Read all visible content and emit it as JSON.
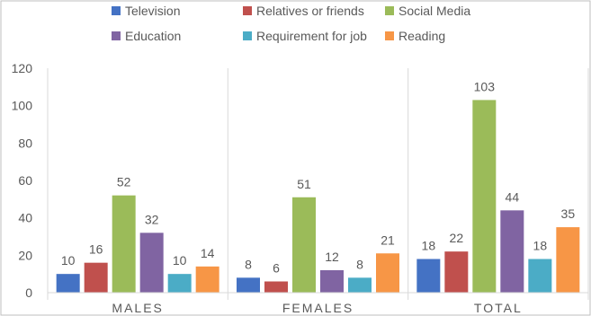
{
  "chart_data": {
    "type": "bar",
    "categories": [
      "MALES",
      "FEMALES",
      "TOTAL"
    ],
    "series": [
      {
        "name": "Television",
        "values": [
          10,
          8,
          18
        ],
        "color": "#4472C4"
      },
      {
        "name": "Relatives or friends",
        "values": [
          16,
          6,
          22
        ],
        "color": "#C0504D"
      },
      {
        "name": "Social Media",
        "values": [
          52,
          51,
          103
        ],
        "color": "#9BBB59"
      },
      {
        "name": "Education",
        "values": [
          32,
          12,
          44
        ],
        "color": "#8064A2"
      },
      {
        "name": "Requirement for job",
        "values": [
          10,
          8,
          18
        ],
        "color": "#4BACC6"
      },
      {
        "name": "Reading",
        "values": [
          14,
          21,
          35
        ],
        "color": "#F79646"
      }
    ],
    "ylim": [
      0,
      120
    ],
    "yticks": [
      0,
      20,
      40,
      60,
      80,
      100,
      120
    ],
    "grid": false,
    "category_separators": true,
    "legend_position": "top",
    "data_labels": true
  }
}
